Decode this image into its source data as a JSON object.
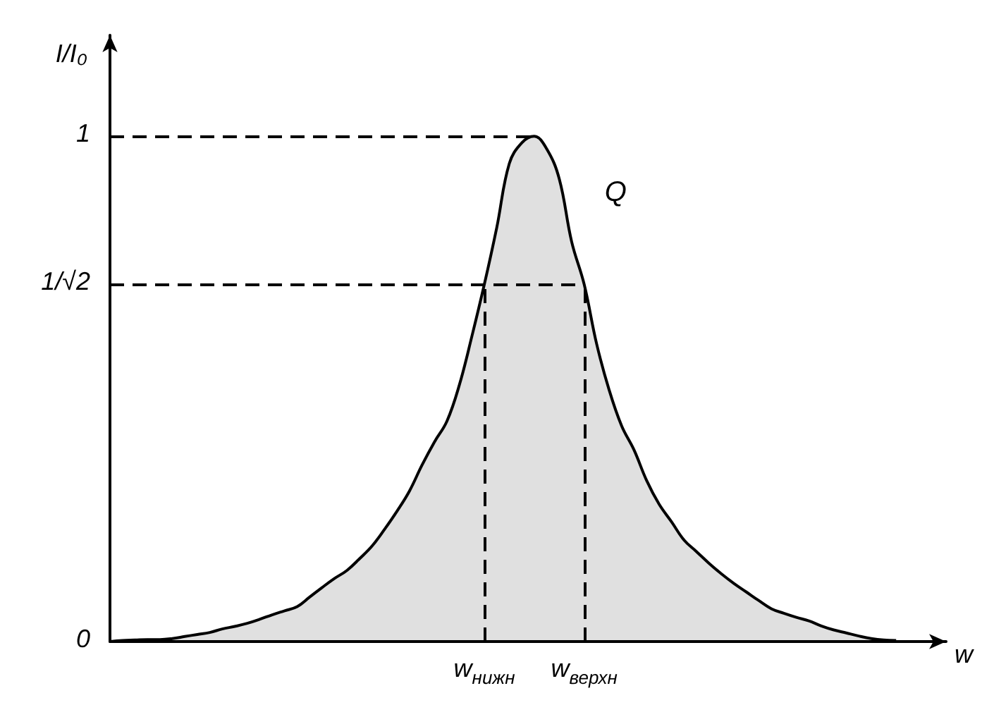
{
  "chart_data": {
    "type": "area",
    "xlabel": "w",
    "ylabel": "I/I₀",
    "categories": [
      null,
      null,
      null,
      null,
      null,
      null,
      null,
      null,
      null,
      null,
      null,
      null,
      null,
      null,
      null,
      null,
      null,
      null,
      null,
      null,
      null,
      null,
      null,
      null,
      null,
      null,
      null,
      null,
      null,
      null,
      "w$_{нижн}$",
      null,
      null,
      null,
      null,
      null,
      null,
      null,
      "w$_{верхн}$",
      null,
      null,
      null,
      null,
      null,
      null,
      null,
      null,
      null,
      null,
      null,
      null,
      null,
      null,
      null,
      null,
      null,
      null,
      null,
      null,
      null,
      null,
      null,
      null,
      null,
      null,
      null,
      null,
      null
    ],
    "series": [
      {
        "color": "#000000",
        "values": [
          0,
          0.002,
          0.003,
          0.004,
          0.004,
          0.006,
          0.01,
          0.014,
          0.018,
          0.025,
          0.03,
          0.036,
          0.044,
          0.053,
          0.061,
          0.069,
          0.088,
          0.107,
          0.125,
          0.141,
          0.164,
          0.189,
          0.222,
          0.258,
          0.298,
          0.349,
          0.395,
          0.436,
          0.508,
          0.604,
          0.707,
          0.82,
          0.946,
          0.987,
          1,
          0.975,
          0.916,
          0.791,
          0.707,
          0.589,
          0.498,
          0.427,
          0.379,
          0.319,
          0.272,
          0.237,
          0.201,
          0.178,
          0.155,
          0.134,
          0.115,
          0.098,
          0.081,
          0.065,
          0.056,
          0.048,
          0.041,
          0.031,
          0.023,
          0.017,
          0.011,
          0.006,
          0.003,
          0.002,
          null,
          null,
          null,
          null
        ]
      }
    ],
    "ylim": [
      0,
      1.2
    ],
    "yticks": [
      0,
      {
        "value": 0.707,
        "label": "1/√2"
      },
      1
    ],
    "ref_lines": [
      {
        "axis": "y",
        "value": 1,
        "color": "#000000",
        "line_style": "dashed"
      },
      {
        "axis": "y",
        "value": 0.707,
        "color": "#000000",
        "line_style": "dashed"
      },
      {
        "axis": "x",
        "value": "w$_{нижн}$",
        "color": "#000000",
        "line_style": "dashed"
      },
      {
        "axis": "x",
        "value": "w$_{верхн}$",
        "color": "#000000",
        "line_style": "dashed"
      }
    ],
    "annotations": [
      "Q"
    ]
  }
}
